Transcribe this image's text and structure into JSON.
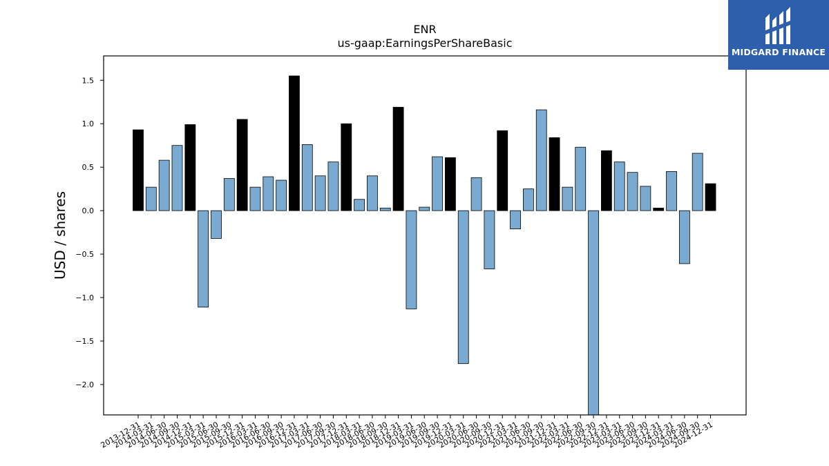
{
  "brand": {
    "name": "MIDGARD FINANCE",
    "color": "#2d5fad"
  },
  "colors": {
    "quarter_bar": "#7aaad0",
    "year_end_bar": "#000000",
    "bar_edge": "#000000"
  },
  "chart_data": {
    "type": "bar",
    "title": "ENR",
    "subtitle": "us-gaap:EarningsPerShareBasic",
    "xlabel": "",
    "ylabel": "USD / shares",
    "ylim": [
      -2.35,
      1.78
    ],
    "yticks": [
      1.5,
      1.0,
      0.5,
      0.0,
      -0.5,
      -1.0,
      -1.5,
      -2.0
    ],
    "ytick_labels": [
      "1.5",
      "1.0",
      "0.5",
      "0.0",
      "−0.5",
      "−1.0",
      "−1.5",
      "−2.0"
    ],
    "grid": false,
    "categories": [
      "2013-12-31",
      "2014-03-31",
      "2014-06-30",
      "2014-09-30",
      "2014-12-31",
      "2015-03-31",
      "2015-06-30",
      "2015-09-30",
      "2015-12-31",
      "2016-03-31",
      "2016-06-30",
      "2016-09-30",
      "2016-12-31",
      "2017-03-31",
      "2017-06-30",
      "2017-09-30",
      "2017-12-31",
      "2018-03-31",
      "2018-06-30",
      "2018-09-30",
      "2018-12-31",
      "2019-03-31",
      "2019-06-30",
      "2019-09-30",
      "2019-12-31",
      "2020-03-31",
      "2020-06-30",
      "2020-09-30",
      "2020-12-31",
      "2021-03-31",
      "2021-06-30",
      "2021-09-30",
      "2021-12-31",
      "2022-03-31",
      "2022-06-30",
      "2022-09-30",
      "2022-12-31",
      "2023-03-31",
      "2023-06-30",
      "2023-09-30",
      "2023-12-31",
      "2024-03-31",
      "2024-06-30",
      "2024-09-30",
      "2024-12-31"
    ],
    "values": [
      0.93,
      0.27,
      0.58,
      0.75,
      0.99,
      -1.11,
      -0.32,
      0.37,
      1.05,
      0.27,
      0.39,
      0.35,
      1.55,
      0.76,
      0.4,
      0.56,
      1.0,
      0.13,
      0.4,
      0.03,
      1.19,
      -1.13,
      0.04,
      0.62,
      0.61,
      -1.76,
      0.38,
      -0.67,
      0.92,
      -0.21,
      0.25,
      1.16,
      0.84,
      0.27,
      0.73,
      -2.35,
      0.69,
      0.56,
      0.44,
      0.28,
      0.03,
      0.45,
      -0.61,
      0.66,
      0.31
    ],
    "year_end": [
      true,
      false,
      false,
      false,
      true,
      false,
      false,
      false,
      true,
      false,
      false,
      false,
      true,
      false,
      false,
      false,
      true,
      false,
      false,
      false,
      true,
      false,
      false,
      false,
      true,
      false,
      false,
      false,
      true,
      false,
      false,
      false,
      true,
      false,
      false,
      false,
      true,
      false,
      false,
      false,
      true,
      false,
      false,
      false,
      true
    ]
  }
}
